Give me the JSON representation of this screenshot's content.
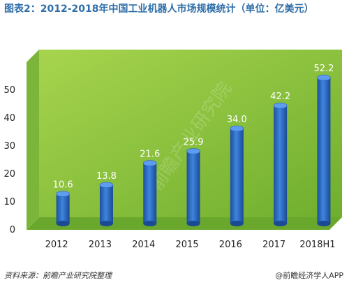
{
  "title": "图表2：2012-2018年中国工业机器人市场规模统计（单位：亿美元）",
  "footer": {
    "source": "资料来源：前瞻产业研究院整理",
    "brand": "@前瞻经济学人APP"
  },
  "watermark": "前瞻产业研究院",
  "colors": {
    "plot_bg": "#8dc63f",
    "bar": "#2e6cc6",
    "title": "#2f6ea8"
  },
  "chart_data": {
    "type": "bar",
    "title": "图表2：2012-2018年中国工业机器人市场规模统计（单位：亿美元）",
    "categories": [
      "2012",
      "2013",
      "2014",
      "2015",
      "2016",
      "2017",
      "2018H1"
    ],
    "values": [
      10.6,
      13.8,
      21.6,
      25.9,
      34.0,
      42.2,
      52.2
    ],
    "value_labels": [
      "10.6",
      "13.8",
      "21.6",
      "25.9",
      "34.0",
      "42.2",
      "52.2"
    ],
    "yticks": [
      "0",
      "10",
      "20",
      "30",
      "40",
      "50"
    ],
    "ylim": [
      0,
      60
    ],
    "xlabel": "",
    "ylabel": "",
    "grid": false,
    "legend": "none"
  }
}
